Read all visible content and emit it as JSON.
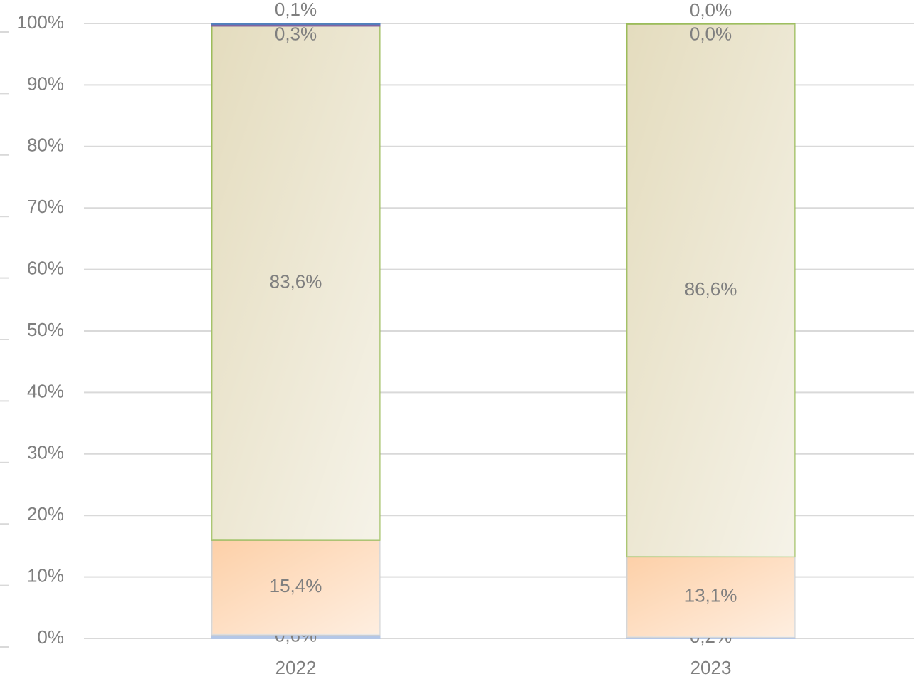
{
  "chart_data": {
    "type": "stacked_bar",
    "categories": [
      "2022",
      "2023"
    ],
    "series": [
      {
        "color": "#b4c7e7",
        "values": [
          0.6,
          0.2
        ],
        "value_labels": [
          "0,6%",
          "0,2%"
        ]
      },
      {
        "color": "#fdd0a8",
        "values": [
          15.4,
          13.1
        ],
        "value_labels": [
          "15,4%",
          "13,1%"
        ]
      },
      {
        "color": "#e4dcbe",
        "values": [
          83.6,
          86.6
        ],
        "value_labels": [
          "83,6%",
          "86,6%"
        ]
      },
      {
        "color": "#8064a2",
        "values": [
          0.3,
          0.0
        ],
        "value_labels": [
          "0,3%",
          "0,0%"
        ]
      },
      {
        "color": "#4f81bd",
        "values": [
          0.1,
          0.0
        ],
        "value_labels": [
          "0,1%",
          "0,0%"
        ]
      }
    ],
    "ylim": [
      0,
      100
    ],
    "yticks": [
      {
        "value": 0,
        "label": "0%"
      },
      {
        "value": 10,
        "label": "10%"
      },
      {
        "value": 20,
        "label": "20%"
      },
      {
        "value": 30,
        "label": "30%"
      },
      {
        "value": 40,
        "label": "40%"
      },
      {
        "value": 50,
        "label": "50%"
      },
      {
        "value": 60,
        "label": "60%"
      },
      {
        "value": 70,
        "label": "70%"
      },
      {
        "value": 80,
        "label": "80%"
      },
      {
        "value": 90,
        "label": "90%"
      },
      {
        "value": 100,
        "label": "100%"
      }
    ],
    "grid": true
  }
}
